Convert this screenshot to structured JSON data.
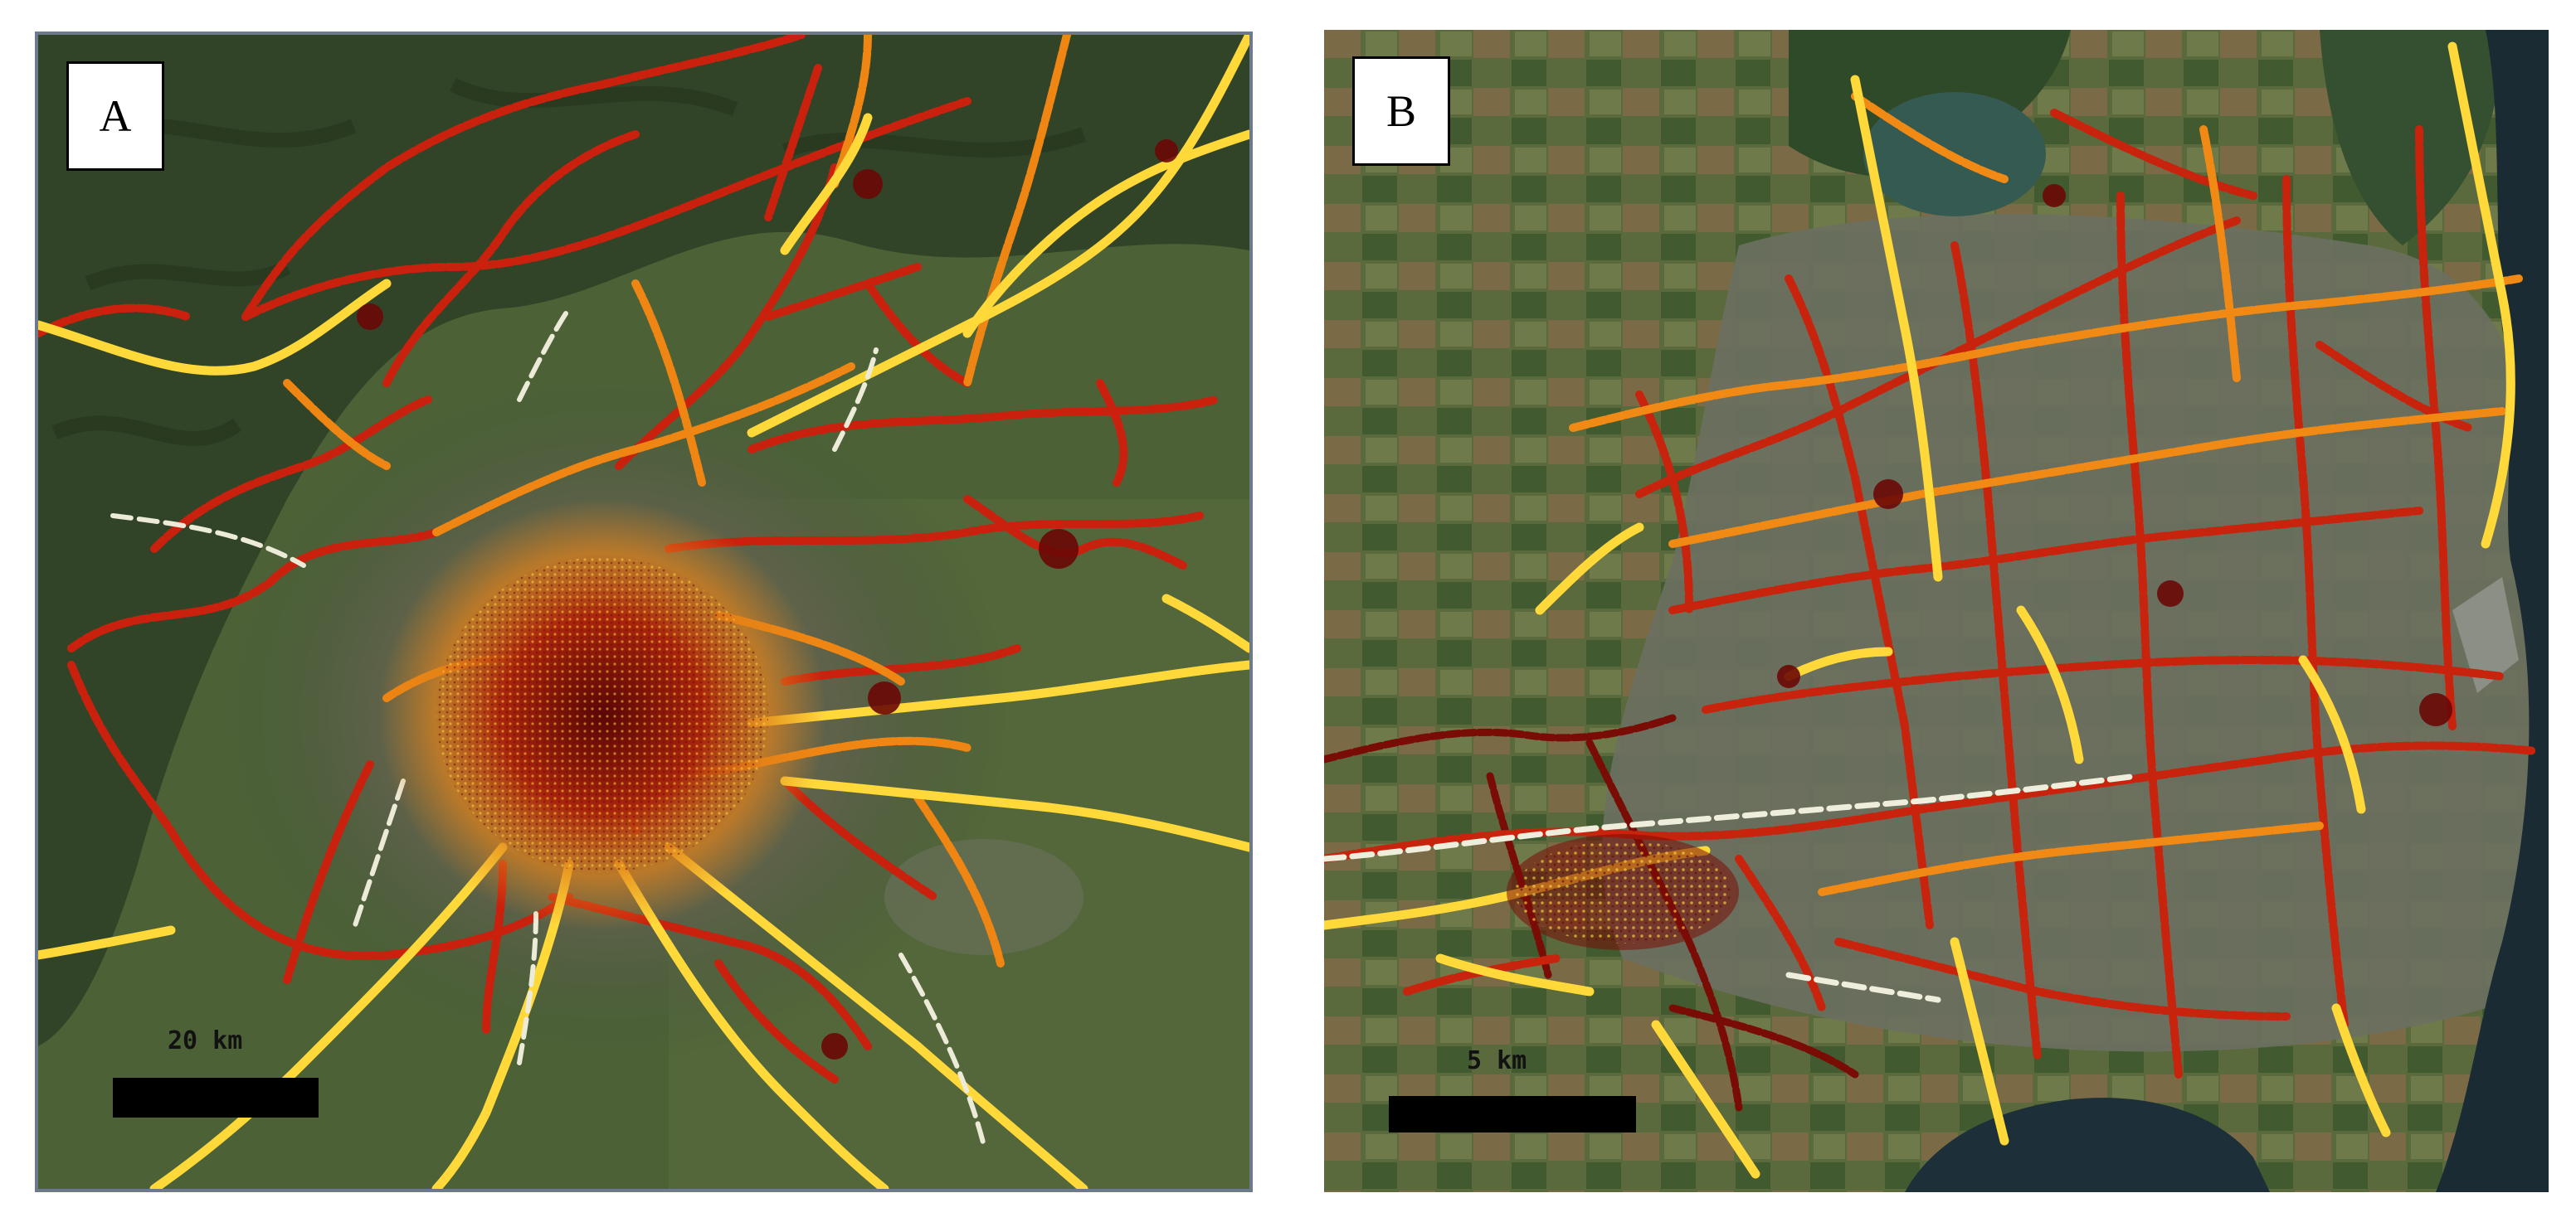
{
  "figure": {
    "panels": [
      {
        "id": "A",
        "label": "A",
        "scale_label": "20 km"
      },
      {
        "id": "B",
        "label": "B",
        "scale_label": "5 km"
      }
    ]
  },
  "colors": {
    "route_hot": "#ffe13a",
    "route_mid": "#f08a12",
    "route_warm": "#d8260e",
    "route_cold": "#5e0805",
    "route_white": "#f2f2e0",
    "terrain_dark": "#2f4326",
    "terrain_green": "#4d6337",
    "urban": "#6f7462",
    "water": "#27434f",
    "sea": "#1b2a33"
  }
}
